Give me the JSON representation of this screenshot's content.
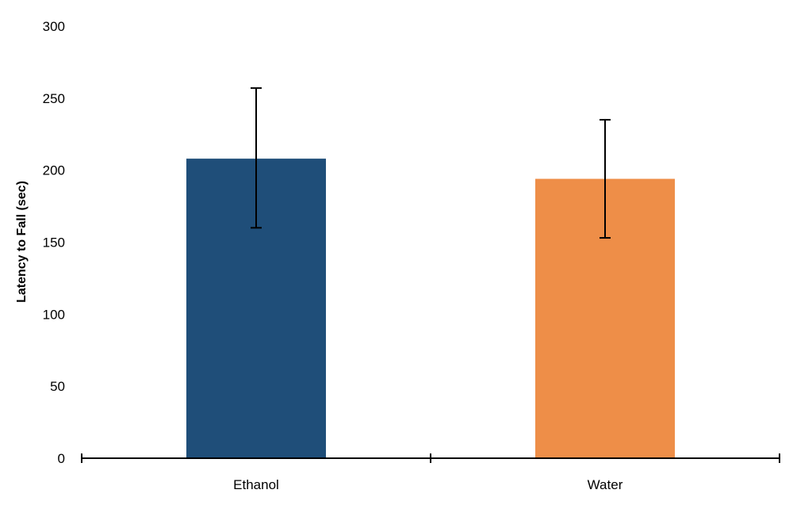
{
  "chart_data": {
    "type": "bar",
    "title": "",
    "xlabel": "",
    "ylabel": "Latency to Fall (sec)",
    "ylim": [
      0,
      300
    ],
    "yticks": [
      0,
      50,
      100,
      150,
      200,
      250,
      300
    ],
    "grid": false,
    "legend": "none",
    "categories": [
      "Ethanol",
      "Water"
    ],
    "values": [
      208,
      194
    ],
    "error_bars": [
      {
        "low": 160,
        "high": 257
      },
      {
        "low": 153,
        "high": 235
      }
    ],
    "colors": [
      "#1f4e79",
      "#ee8e48"
    ]
  }
}
